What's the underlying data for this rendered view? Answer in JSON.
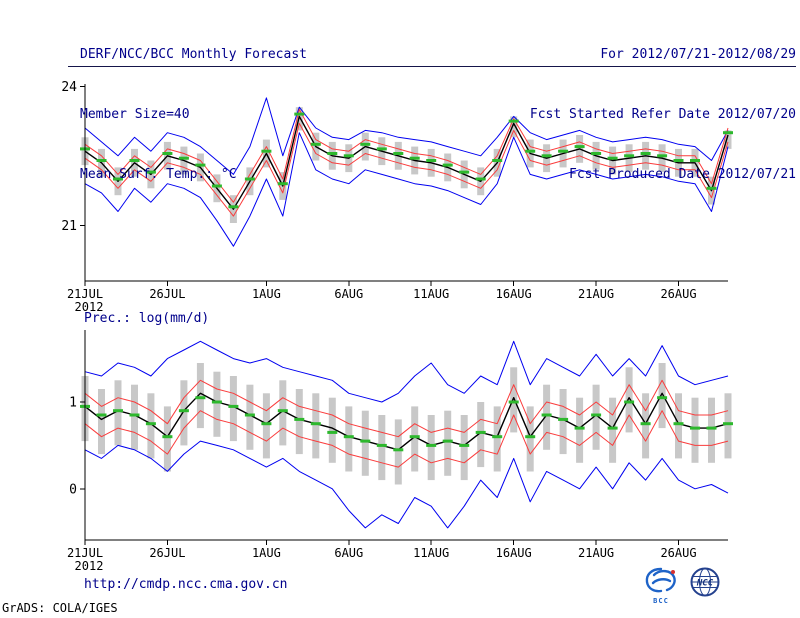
{
  "header": {
    "left": [
      "DERF/NCC/BCC Monthly Forecast",
      "Member Size=40",
      "Mean Surf. Temp.: °C"
    ],
    "right": [
      "For 2012/07/21-2012/08/29",
      "Fcst Started Refer Date 2012/07/20",
      "Fcst Produced Date 2012/07/21"
    ]
  },
  "footer": {
    "url": "http://cmdp.ncc.cma.gov.cn",
    "credit": "GrADS: COLA/IGES",
    "logos": [
      {
        "label": "BCC"
      },
      {
        "label": "NCC"
      }
    ]
  },
  "colors": {
    "background": "#ffffff",
    "text_navy": "#00008b",
    "axis_black": "#000000",
    "line_blue": "#0000f0",
    "line_red": "#fa3c3c",
    "line_black": "#000000",
    "marker_green": "#2db82d",
    "bar_gray": "#c8c8c8"
  },
  "chart_data": [
    {
      "type": "line",
      "panel_label": "Mean Surf. Temp.: °C",
      "n_days": 40,
      "year_label": "2012",
      "x_ticks": [
        {
          "day": 0,
          "label": "21JUL"
        },
        {
          "day": 5,
          "label": "26JUL"
        },
        {
          "day": 11,
          "label": "1AUG"
        },
        {
          "day": 16,
          "label": "6AUG"
        },
        {
          "day": 21,
          "label": "11AUG"
        },
        {
          "day": 26,
          "label": "16AUG"
        },
        {
          "day": 31,
          "label": "21AUG"
        },
        {
          "day": 36,
          "label": "26AUG"
        }
      ],
      "ylim": [
        19.8,
        24.05
      ],
      "y_ticks": [
        {
          "value": 24,
          "label": "24"
        },
        {
          "value": 21,
          "label": "21"
        }
      ],
      "series": [
        {
          "name": "ensemble-max",
          "color": "line_blue",
          "width": 1,
          "values": [
            23.1,
            22.8,
            22.5,
            22.9,
            22.6,
            23.0,
            22.9,
            22.7,
            22.4,
            22.1,
            22.7,
            23.75,
            22.5,
            23.55,
            23.1,
            22.9,
            22.85,
            23.05,
            23.0,
            22.9,
            22.85,
            22.8,
            22.7,
            22.6,
            22.5,
            22.9,
            23.35,
            23.0,
            22.85,
            22.95,
            23.05,
            22.9,
            22.8,
            22.85,
            22.9,
            22.85,
            22.75,
            22.7,
            22.4,
            23.05
          ]
        },
        {
          "name": "ensemble-min",
          "color": "line_blue",
          "width": 1,
          "values": [
            21.9,
            21.7,
            21.3,
            21.8,
            21.5,
            21.9,
            21.8,
            21.6,
            21.1,
            20.55,
            21.2,
            22.0,
            21.2,
            23.0,
            22.2,
            22.0,
            21.9,
            22.2,
            22.1,
            22.0,
            21.9,
            21.85,
            21.75,
            21.6,
            21.45,
            21.9,
            22.9,
            22.1,
            22.0,
            22.1,
            22.2,
            22.1,
            22.0,
            22.05,
            22.1,
            22.05,
            21.95,
            21.9,
            21.3,
            22.7
          ]
        },
        {
          "name": "upper-quartile",
          "color": "line_red",
          "width": 1,
          "values": [
            22.75,
            22.5,
            22.1,
            22.5,
            22.25,
            22.65,
            22.55,
            22.4,
            21.95,
            21.5,
            22.1,
            22.7,
            22.0,
            23.5,
            22.85,
            22.65,
            22.6,
            22.85,
            22.75,
            22.65,
            22.55,
            22.5,
            22.4,
            22.25,
            22.1,
            22.5,
            23.3,
            22.7,
            22.6,
            22.7,
            22.8,
            22.65,
            22.55,
            22.6,
            22.65,
            22.6,
            22.5,
            22.5,
            21.9,
            23.1
          ]
        },
        {
          "name": "lower-quartile",
          "color": "line_red",
          "width": 1,
          "values": [
            22.45,
            22.2,
            21.8,
            22.2,
            21.95,
            22.35,
            22.25,
            22.1,
            21.65,
            21.2,
            21.8,
            22.4,
            21.7,
            23.2,
            22.55,
            22.35,
            22.3,
            22.55,
            22.45,
            22.35,
            22.25,
            22.2,
            22.1,
            21.95,
            21.8,
            22.2,
            23.05,
            22.4,
            22.3,
            22.4,
            22.5,
            22.35,
            22.25,
            22.3,
            22.35,
            22.3,
            22.2,
            22.2,
            21.6,
            22.8
          ]
        },
        {
          "name": "ensemble-mean",
          "color": "line_black",
          "width": 1.4,
          "values": [
            22.6,
            22.35,
            21.95,
            22.35,
            22.1,
            22.5,
            22.4,
            22.25,
            21.8,
            21.35,
            21.95,
            22.55,
            21.85,
            23.35,
            22.7,
            22.5,
            22.45,
            22.7,
            22.6,
            22.5,
            22.4,
            22.35,
            22.25,
            22.1,
            21.95,
            22.35,
            23.2,
            22.55,
            22.45,
            22.55,
            22.65,
            22.5,
            22.4,
            22.45,
            22.5,
            22.45,
            22.35,
            22.35,
            21.75,
            22.95
          ]
        }
      ],
      "median_markers": {
        "color": "marker_green",
        "values": [
          22.65,
          22.4,
          22.0,
          22.4,
          22.15,
          22.55,
          22.45,
          22.3,
          21.85,
          21.4,
          22.0,
          22.6,
          21.9,
          23.4,
          22.75,
          22.55,
          22.5,
          22.75,
          22.65,
          22.55,
          22.45,
          22.4,
          22.3,
          22.15,
          22.0,
          22.4,
          23.25,
          22.6,
          22.5,
          22.6,
          22.7,
          22.55,
          22.45,
          22.5,
          22.55,
          22.5,
          22.4,
          22.4,
          21.8,
          23.0
        ]
      },
      "spread_bars": {
        "color": "bar_gray",
        "high": [
          22.9,
          22.65,
          22.25,
          22.65,
          22.4,
          22.8,
          22.7,
          22.55,
          22.1,
          21.65,
          22.25,
          22.85,
          22.15,
          23.55,
          23.0,
          22.8,
          22.75,
          23.0,
          22.9,
          22.8,
          22.7,
          22.65,
          22.55,
          22.4,
          22.25,
          22.65,
          23.35,
          22.85,
          22.75,
          22.85,
          22.95,
          22.8,
          22.7,
          22.75,
          22.8,
          22.75,
          22.65,
          22.65,
          22.05,
          23.05
        ],
        "low": [
          22.3,
          22.05,
          21.65,
          22.05,
          21.8,
          22.2,
          22.1,
          21.95,
          21.5,
          21.05,
          21.65,
          22.25,
          21.55,
          23.05,
          22.4,
          22.2,
          22.15,
          22.4,
          22.3,
          22.2,
          22.1,
          22.05,
          21.95,
          21.8,
          21.65,
          22.05,
          22.9,
          22.25,
          22.15,
          22.25,
          22.35,
          22.2,
          22.1,
          22.15,
          22.2,
          22.15,
          22.05,
          22.05,
          21.45,
          22.65
        ]
      }
    },
    {
      "type": "line",
      "panel_label": "Prec.: log(mm/d)",
      "n_days": 40,
      "year_label": "2012",
      "x_ticks": [
        {
          "day": 0,
          "label": "21JUL"
        },
        {
          "day": 5,
          "label": "26JUL"
        },
        {
          "day": 11,
          "label": "1AUG"
        },
        {
          "day": 16,
          "label": "6AUG"
        },
        {
          "day": 21,
          "label": "11AUG"
        },
        {
          "day": 26,
          "label": "16AUG"
        },
        {
          "day": 31,
          "label": "21AUG"
        },
        {
          "day": 36,
          "label": "26AUG"
        }
      ],
      "ylim": [
        -0.59,
        1.83
      ],
      "y_ticks": [
        {
          "value": 1,
          "label": "1"
        },
        {
          "value": 0,
          "label": "0"
        }
      ],
      "series": [
        {
          "name": "ensemble-max",
          "color": "line_blue",
          "width": 1,
          "values": [
            1.35,
            1.3,
            1.45,
            1.4,
            1.3,
            1.5,
            1.6,
            1.7,
            1.6,
            1.5,
            1.45,
            1.5,
            1.4,
            1.35,
            1.3,
            1.25,
            1.1,
            1.05,
            1.0,
            1.1,
            1.3,
            1.45,
            1.2,
            1.1,
            1.3,
            1.2,
            1.7,
            1.2,
            1.5,
            1.4,
            1.3,
            1.55,
            1.3,
            1.5,
            1.3,
            1.65,
            1.3,
            1.2,
            1.25,
            1.3
          ]
        },
        {
          "name": "ensemble-min",
          "color": "line_blue",
          "width": 1,
          "values": [
            0.45,
            0.35,
            0.5,
            0.45,
            0.35,
            0.2,
            0.4,
            0.55,
            0.5,
            0.45,
            0.35,
            0.25,
            0.35,
            0.2,
            0.1,
            0.0,
            -0.25,
            -0.45,
            -0.3,
            -0.4,
            -0.1,
            -0.2,
            -0.45,
            -0.2,
            0.1,
            -0.1,
            0.35,
            -0.15,
            0.2,
            0.1,
            0.0,
            0.25,
            0.0,
            0.3,
            0.1,
            0.35,
            0.1,
            0.0,
            0.05,
            -0.05
          ]
        },
        {
          "name": "upper-quartile",
          "color": "line_red",
          "width": 1,
          "values": [
            1.1,
            0.95,
            1.05,
            1.0,
            0.9,
            0.75,
            1.05,
            1.25,
            1.15,
            1.1,
            1.0,
            0.9,
            1.05,
            0.95,
            0.9,
            0.85,
            0.75,
            0.7,
            0.65,
            0.6,
            0.75,
            0.65,
            0.7,
            0.65,
            0.8,
            0.75,
            1.2,
            0.75,
            1.0,
            0.95,
            0.85,
            1.0,
            0.85,
            1.2,
            0.9,
            1.25,
            0.9,
            0.85,
            0.85,
            0.9
          ]
        },
        {
          "name": "lower-quartile",
          "color": "line_red",
          "width": 1,
          "values": [
            0.75,
            0.6,
            0.7,
            0.65,
            0.55,
            0.4,
            0.7,
            0.9,
            0.8,
            0.75,
            0.65,
            0.55,
            0.7,
            0.6,
            0.55,
            0.5,
            0.4,
            0.35,
            0.3,
            0.25,
            0.4,
            0.3,
            0.35,
            0.3,
            0.45,
            0.4,
            0.85,
            0.4,
            0.65,
            0.6,
            0.5,
            0.65,
            0.5,
            0.85,
            0.55,
            0.9,
            0.55,
            0.5,
            0.5,
            0.55
          ]
        },
        {
          "name": "ensemble-mean",
          "color": "line_black",
          "width": 1.4,
          "values": [
            0.95,
            0.8,
            0.9,
            0.85,
            0.75,
            0.6,
            0.9,
            1.1,
            1.0,
            0.95,
            0.85,
            0.75,
            0.9,
            0.8,
            0.75,
            0.7,
            0.6,
            0.55,
            0.5,
            0.45,
            0.6,
            0.5,
            0.55,
            0.5,
            0.65,
            0.6,
            1.05,
            0.6,
            0.85,
            0.8,
            0.7,
            0.85,
            0.7,
            1.05,
            0.75,
            1.1,
            0.75,
            0.7,
            0.7,
            0.75
          ]
        }
      ],
      "median_markers": {
        "color": "marker_green",
        "values": [
          0.95,
          0.85,
          0.9,
          0.85,
          0.75,
          0.6,
          0.9,
          1.05,
          1.0,
          0.95,
          0.85,
          0.75,
          0.9,
          0.8,
          0.75,
          0.65,
          0.6,
          0.55,
          0.5,
          0.45,
          0.6,
          0.5,
          0.55,
          0.5,
          0.65,
          0.6,
          1.0,
          0.6,
          0.85,
          0.8,
          0.7,
          0.85,
          0.7,
          1.0,
          0.75,
          1.05,
          0.75,
          0.7,
          0.7,
          0.75
        ]
      },
      "spread_bars": {
        "color": "bar_gray",
        "high": [
          1.3,
          1.15,
          1.25,
          1.2,
          1.1,
          0.95,
          1.25,
          1.45,
          1.35,
          1.3,
          1.2,
          1.1,
          1.25,
          1.15,
          1.1,
          1.05,
          0.95,
          0.9,
          0.85,
          0.8,
          0.95,
          0.85,
          0.9,
          0.85,
          1.0,
          0.95,
          1.4,
          0.95,
          1.2,
          1.15,
          1.05,
          1.2,
          1.05,
          1.4,
          1.1,
          1.45,
          1.1,
          1.05,
          1.05,
          1.1
        ],
        "low": [
          0.55,
          0.4,
          0.5,
          0.45,
          0.35,
          0.2,
          0.5,
          0.7,
          0.6,
          0.55,
          0.45,
          0.35,
          0.5,
          0.4,
          0.35,
          0.3,
          0.2,
          0.15,
          0.1,
          0.05,
          0.2,
          0.1,
          0.15,
          0.1,
          0.25,
          0.2,
          0.65,
          0.2,
          0.45,
          0.4,
          0.3,
          0.45,
          0.3,
          0.65,
          0.35,
          0.7,
          0.35,
          0.3,
          0.3,
          0.35
        ]
      }
    }
  ]
}
